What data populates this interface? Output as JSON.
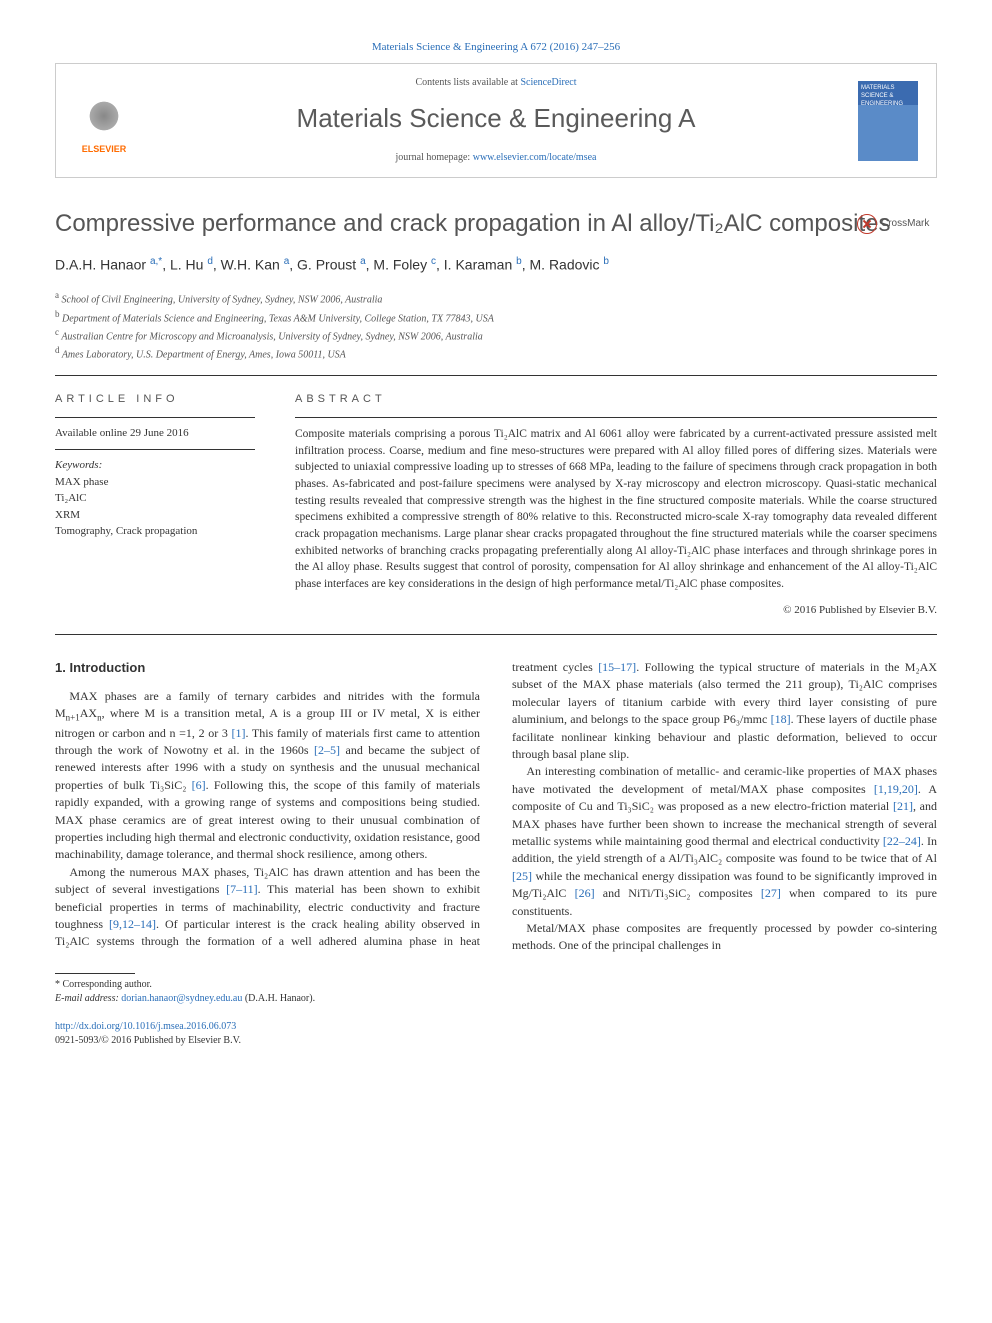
{
  "header": {
    "journal_reference": "Materials Science & Engineering A 672 (2016) 247–256",
    "contents_prefix": "Contents lists available at ",
    "contents_link": "ScienceDirect",
    "journal_title": "Materials Science & Engineering A",
    "homepage_prefix": "journal homepage: ",
    "homepage_link": "www.elsevier.com/locate/msea",
    "publisher_name": "ELSEVIER",
    "cover_text": "MATERIALS SCIENCE & ENGINEERING"
  },
  "crossmark_label": "CrossMark",
  "title": "Compressive performance and crack propagation in Al alloy/Ti₂AlC composites",
  "authors_html": "D.A.H. Hanaor <sup><a>a,</a></sup><sup><a>*</a></sup>, L. Hu <sup><a>d</a></sup>, W.H. Kan <sup><a>a</a></sup>, G. Proust <sup><a>a</a></sup>, M. Foley <sup><a>c</a></sup>, I. Karaman <sup><a>b</a></sup>, M. Radovic <sup><a>b</a></sup>",
  "affiliations": [
    {
      "marker": "a",
      "text": "School of Civil Engineering, University of Sydney, Sydney, NSW 2006, Australia"
    },
    {
      "marker": "b",
      "text": "Department of Materials Science and Engineering, Texas A&M University, College Station, TX 77843, USA"
    },
    {
      "marker": "c",
      "text": "Australian Centre for Microscopy and Microanalysis, University of Sydney, Sydney, NSW 2006, Australia"
    },
    {
      "marker": "d",
      "text": "Ames Laboratory, U.S. Department of Energy, Ames, Iowa 50011, USA"
    }
  ],
  "article_info": {
    "heading": "ARTICLE INFO",
    "available": "Available online 29 June 2016",
    "keywords_label": "Keywords:",
    "keywords": [
      "MAX phase",
      "Ti₂AlC",
      "XRM",
      "Tomography, Crack propagation"
    ]
  },
  "abstract": {
    "heading": "ABSTRACT",
    "text": "Composite materials comprising a porous Ti₂AlC matrix and Al 6061 alloy were fabricated by a current-activated pressure assisted melt infiltration process. Coarse, medium and fine meso-structures were prepared with Al alloy filled pores of differing sizes. Materials were subjected to uniaxial compressive loading up to stresses of 668 MPa, leading to the failure of specimens through crack propagation in both phases. As-fabricated and post-failure specimens were analysed by X-ray microscopy and electron microscopy. Quasi-static mechanical testing results revealed that compressive strength was the highest in the fine structured composite materials. While the coarse structured specimens exhibited a compressive strength of 80% relative to this. Reconstructed micro-scale X-ray tomography data revealed different crack propagation mechanisms. Large planar shear cracks propagated throughout the fine structured materials while the coarser specimens exhibited networks of branching cracks propagating preferentially along Al alloy-Ti₂AlC phase interfaces and through shrinkage pores in the Al alloy phase. Results suggest that control of porosity, compensation for Al alloy shrinkage and enhancement of the Al alloy-Ti₂AlC phase interfaces are key considerations in the design of high performance metal/Ti₂AlC phase composites.",
    "copyright": "© 2016 Published by Elsevier B.V."
  },
  "body": {
    "section_heading": "1. Introduction",
    "p1_a": "MAX phases are a family of ternary carbides and nitrides with the formula M",
    "p1_b": "AX",
    "p1_c": ", where M is a transition metal, A is a group III or IV metal, X is either nitrogen or carbon and n =1, 2 or 3 ",
    "ref1": "[1]",
    "p1_d": ". This family of materials first came to attention through the work of Nowotny et al. in the 1960s ",
    "ref2_5": "[2–5]",
    "p1_e": " and became the subject of renewed interests after 1996 with a study on synthesis and the unusual mechanical properties of bulk Ti₃SiC₂ ",
    "ref6": "[6]",
    "p1_f": ". Following this, the scope of this family of materials rapidly expanded, with a growing range of systems and compositions being studied. MAX phase ceramics are of great interest owing to their unusual combination of properties including high thermal and electronic conductivity, oxidation resistance, good machinability, damage tolerance, and thermal shock resilience, among others.",
    "p2_a": "Among the numerous MAX phases, Ti₂AlC has drawn attention and has been the subject of several investigations ",
    "ref7_11": "[7–11]",
    "p2_b": ". This material has been shown to exhibit beneficial properties in terms of machinability, electric conductivity and fracture toughness ",
    "ref9_12_14": "[9,12–14]",
    "p2_c": ". Of particular interest is the crack healing ability observed in Ti₂AlC systems through the formation of a well adhered alumina phase in heat treatment cycles ",
    "ref15_17": "[15–17]",
    "p2_d": ". Following the typical structure of materials in the M₂AX subset of the MAX phase materials (also termed the 211 group), Ti₂AlC comprises molecular layers of titanium carbide with every third layer consisting of pure aluminium, and belongs to the space group P6₃/mmc ",
    "ref18": "[18]",
    "p2_e": ". These layers of ductile phase facilitate nonlinear kinking behaviour and plastic deformation, believed to occur through basal plane slip.",
    "p3_a": "An interesting combination of metallic- and ceramic-like properties of MAX phases have motivated the development of metal/MAX phase composites ",
    "ref1_19_20": "[1,19,20]",
    "p3_b": ". A composite of Cu and Ti₃SiC₂ was proposed as a new electro-friction material ",
    "ref21": "[21]",
    "p3_c": ", and MAX phases have further been shown to increase the mechanical strength of several metallic systems while maintaining good thermal and electrical conductivity ",
    "ref22_24": "[22–24]",
    "p3_d": ". In addition, the yield strength of a Al/Ti₃AlC₂ composite was found to be twice that of Al ",
    "ref25": "[25]",
    "p3_e": " while the mechanical energy dissipation was found to be significantly improved in Mg/Ti₂AlC ",
    "ref26": "[26]",
    "p3_f": " and NiTi/Ti₃SiC₂ composites ",
    "ref27": "[27]",
    "p3_g": " when compared to its pure constituents.",
    "p4": "Metal/MAX phase composites are frequently processed by powder co-sintering methods. One of the principal challenges in"
  },
  "footnotes": {
    "corresponding": "* Corresponding author.",
    "email_label": "E-mail address: ",
    "email": "dorian.hanaor@sydney.edu.au",
    "email_author": " (D.A.H. Hanaor)."
  },
  "doi": {
    "link": "http://dx.doi.org/10.1016/j.msea.2016.06.073",
    "issn_line": "0921-5093/© 2016 Published by Elsevier B.V."
  }
}
